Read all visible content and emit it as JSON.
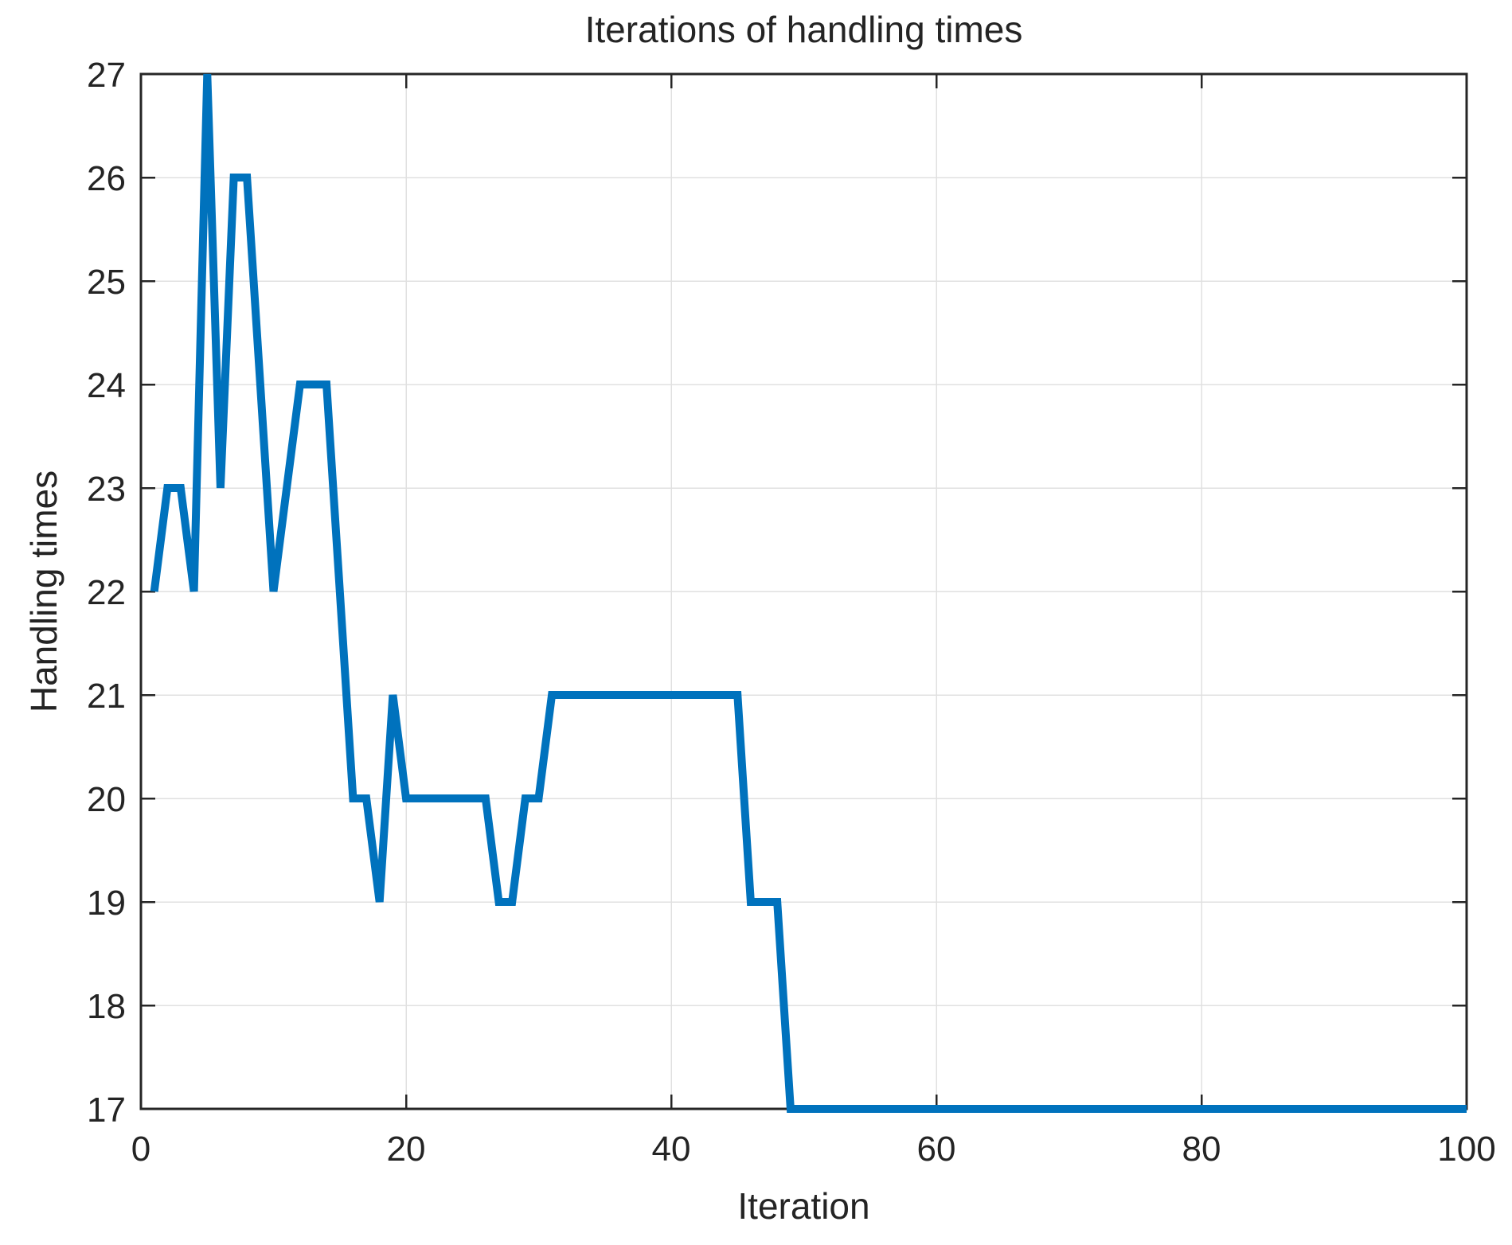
{
  "chart_data": {
    "type": "line",
    "title": "Iterations of handling times",
    "xlabel": "Iteration",
    "ylabel": "Handling times",
    "xlim": [
      0,
      100
    ],
    "ylim": [
      17,
      27
    ],
    "x_ticks": [
      0,
      20,
      40,
      60,
      80,
      100
    ],
    "y_ticks": [
      17,
      18,
      19,
      20,
      21,
      22,
      23,
      24,
      25,
      26,
      27
    ],
    "grid": true,
    "legend": "none",
    "x_start": 1,
    "series": [
      {
        "name": "handling-times",
        "values": [
          22,
          23,
          23,
          22,
          27,
          23,
          26,
          26,
          24,
          22,
          23,
          24,
          24,
          24,
          22,
          20,
          20,
          19,
          21,
          20,
          20,
          20,
          20,
          20,
          20,
          20,
          19,
          19,
          20,
          20,
          21,
          21,
          21,
          21,
          21,
          21,
          21,
          21,
          21,
          21,
          21,
          21,
          21,
          21,
          21,
          19,
          19,
          19,
          17,
          17,
          17,
          17,
          17,
          17,
          17,
          17,
          17,
          17,
          17,
          17,
          17,
          17,
          17,
          17,
          17,
          17,
          17,
          17,
          17,
          17,
          17,
          17,
          17,
          17,
          17,
          17,
          17,
          17,
          17,
          17,
          17,
          17,
          17,
          17,
          17,
          17,
          17,
          17,
          17,
          17,
          17,
          17,
          17,
          17,
          17,
          17,
          17,
          17,
          17,
          17
        ]
      }
    ],
    "line_color": "#0072BD",
    "line_width": 10,
    "axis_color": "#262626",
    "grid_color": "#e0e0e0",
    "text_color": "#242424",
    "background": "#ffffff"
  }
}
